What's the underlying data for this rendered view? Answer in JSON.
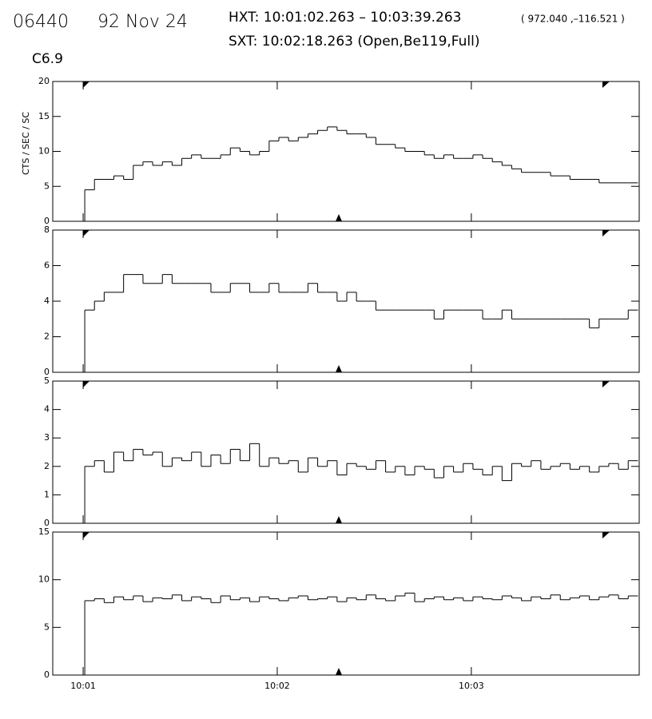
{
  "header": {
    "id": "06440",
    "date": "92 Nov 24",
    "hxt": "HXT: 10:01:02.263 – 10:03:39.263",
    "coords": "( 972.040 ,–116.521 )",
    "sxt": "SXT: 10:02:18.263 (Open,Be119,Full)",
    "class": "C6.9"
  },
  "chart_data": [
    {
      "type": "line",
      "ylabel": "CTS / SEC / SC",
      "color": "#000000",
      "x": [
        62,
        65,
        68,
        71,
        74,
        77,
        80,
        83,
        86,
        89,
        92,
        95,
        98,
        101,
        104,
        107,
        110,
        113,
        116,
        119,
        122,
        125,
        128,
        131,
        134,
        137,
        140,
        143,
        146,
        149,
        152,
        155,
        158,
        161,
        164,
        167,
        170,
        173,
        176,
        179,
        182,
        185,
        188,
        191,
        194,
        197,
        200,
        203,
        206,
        209,
        212,
        215,
        218,
        221,
        224,
        227,
        230
      ],
      "values": [
        4.5,
        6,
        6,
        6.5,
        6,
        8,
        8.5,
        8,
        8.5,
        8,
        9,
        9.5,
        9,
        9,
        9.5,
        10.5,
        10,
        9.5,
        10,
        11.5,
        12,
        11.5,
        12,
        12.5,
        13,
        13.5,
        13,
        12.5,
        12.5,
        12,
        11,
        11,
        10.5,
        10,
        10,
        9.5,
        9,
        9.5,
        9,
        9,
        9.5,
        9,
        8.5,
        8,
        7.5,
        7,
        7,
        7,
        6.5,
        6.5,
        6,
        6,
        6,
        5.5,
        5.5,
        5.5,
        5.5
      ],
      "xlim": [
        50.6,
        231.9
      ],
      "ylim": [
        0,
        20
      ],
      "yticks": [
        0,
        5,
        10,
        15,
        20
      ]
    },
    {
      "type": "line",
      "color": "#000000",
      "x": [
        62,
        65,
        68,
        71,
        74,
        77,
        80,
        83,
        86,
        89,
        92,
        95,
        98,
        101,
        104,
        107,
        110,
        113,
        116,
        119,
        122,
        125,
        128,
        131,
        134,
        137,
        140,
        143,
        146,
        149,
        152,
        155,
        158,
        161,
        164,
        167,
        170,
        173,
        176,
        179,
        182,
        185,
        188,
        191,
        194,
        197,
        200,
        203,
        206,
        209,
        212,
        215,
        218,
        221,
        224,
        227,
        230
      ],
      "values": [
        3.5,
        4,
        4.5,
        4.5,
        5.5,
        5.5,
        5,
        5,
        5.5,
        5,
        5,
        5,
        5,
        4.5,
        4.5,
        5,
        5,
        4.5,
        4.5,
        5,
        4.5,
        4.5,
        4.5,
        5,
        4.5,
        4.5,
        4,
        4.5,
        4,
        4,
        3.5,
        3.5,
        3.5,
        3.5,
        3.5,
        3.5,
        3,
        3.5,
        3.5,
        3.5,
        3.5,
        3,
        3,
        3.5,
        3,
        3,
        3,
        3,
        3,
        3,
        3,
        3,
        2.5,
        3,
        3,
        3,
        3.5
      ],
      "xlim": [
        50.6,
        231.9
      ],
      "ylim": [
        0,
        8
      ],
      "yticks": [
        0,
        2,
        4,
        6,
        8
      ]
    },
    {
      "type": "line",
      "color": "#000000",
      "x": [
        62,
        65,
        68,
        71,
        74,
        77,
        80,
        83,
        86,
        89,
        92,
        95,
        98,
        101,
        104,
        107,
        110,
        113,
        116,
        119,
        122,
        125,
        128,
        131,
        134,
        137,
        140,
        143,
        146,
        149,
        152,
        155,
        158,
        161,
        164,
        167,
        170,
        173,
        176,
        179,
        182,
        185,
        188,
        191,
        194,
        197,
        200,
        203,
        206,
        209,
        212,
        215,
        218,
        221,
        224,
        227,
        230
      ],
      "values": [
        2,
        2.2,
        1.8,
        2.5,
        2.2,
        2.6,
        2.4,
        2.5,
        2,
        2.3,
        2.2,
        2.5,
        2,
        2.4,
        2.1,
        2.6,
        2.2,
        2.8,
        2,
        2.3,
        2.1,
        2.2,
        1.8,
        2.3,
        2,
        2.2,
        1.7,
        2.1,
        2,
        1.9,
        2.2,
        1.8,
        2,
        1.7,
        2,
        1.9,
        1.6,
        2,
        1.8,
        2.1,
        1.9,
        1.7,
        2,
        1.5,
        2.1,
        2,
        2.2,
        1.9,
        2,
        2.1,
        1.9,
        2,
        1.8,
        2,
        2.1,
        1.9,
        2.2
      ],
      "xlim": [
        50.6,
        231.9
      ],
      "ylim": [
        0,
        5
      ],
      "yticks": [
        0,
        1,
        2,
        3,
        4,
        5
      ]
    },
    {
      "type": "line",
      "color": "#000000",
      "x": [
        62,
        65,
        68,
        71,
        74,
        77,
        80,
        83,
        86,
        89,
        92,
        95,
        98,
        101,
        104,
        107,
        110,
        113,
        116,
        119,
        122,
        125,
        128,
        131,
        134,
        137,
        140,
        143,
        146,
        149,
        152,
        155,
        158,
        161,
        164,
        167,
        170,
        173,
        176,
        179,
        182,
        185,
        188,
        191,
        194,
        197,
        200,
        203,
        206,
        209,
        212,
        215,
        218,
        221,
        224,
        227,
        230
      ],
      "values": [
        7.8,
        8,
        7.6,
        8.2,
        7.9,
        8.3,
        7.7,
        8.1,
        8,
        8.4,
        7.8,
        8.2,
        8,
        7.6,
        8.3,
        7.9,
        8.1,
        7.7,
        8.2,
        8,
        7.8,
        8.1,
        8.3,
        7.9,
        8,
        8.2,
        7.7,
        8.1,
        7.9,
        8.4,
        8,
        7.8,
        8.3,
        8.6,
        7.7,
        8,
        8.2,
        7.9,
        8.1,
        7.8,
        8.2,
        8,
        7.9,
        8.3,
        8.1,
        7.8,
        8.2,
        8,
        8.4,
        7.9,
        8.1,
        8.3,
        7.9,
        8.2,
        8.4,
        8,
        8.3
      ],
      "xlim": [
        50.6,
        231.9
      ],
      "ylim": [
        0,
        15
      ],
      "yticks": [
        0,
        5,
        10,
        15
      ],
      "xticks": [
        {
          "value": 60,
          "label": "10:01"
        },
        {
          "value": 120,
          "label": "10:02"
        },
        {
          "value": 180,
          "label": "10:03"
        }
      ]
    }
  ]
}
